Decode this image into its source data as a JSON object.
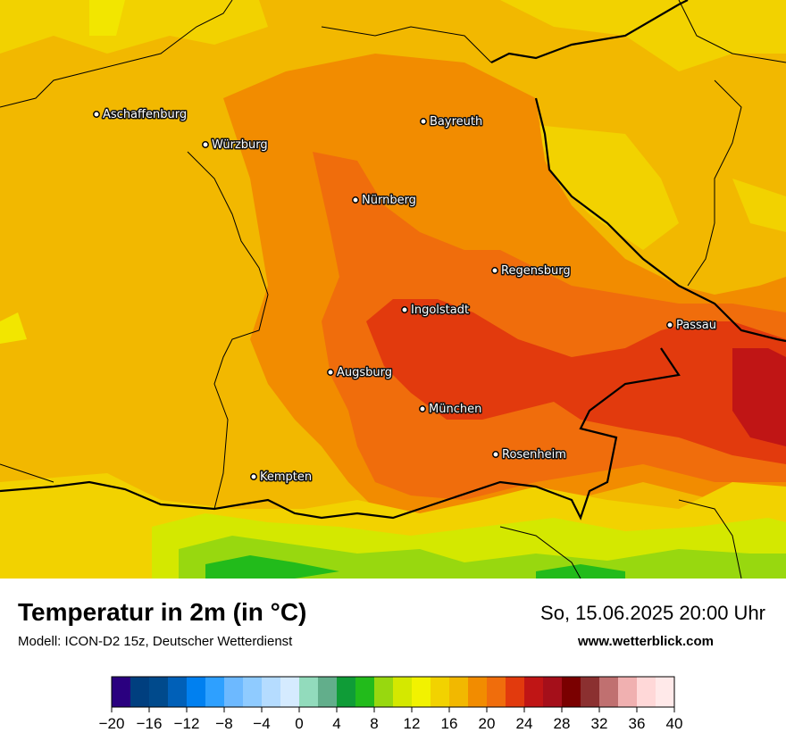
{
  "title": "Temperatur in 2m (in °C)",
  "subtitle": "Modell: ICON-D2 15z, Deutscher Wetterdienst",
  "datetime": "So, 15.06.2025 20:00 Uhr",
  "website": "www.wetterblick.com",
  "cities": [
    {
      "name": "Aschaffenburg"
    },
    {
      "name": "Würzburg"
    },
    {
      "name": "Bayreuth"
    },
    {
      "name": "Nürnberg"
    },
    {
      "name": "Regensburg"
    },
    {
      "name": "Ingolstadt"
    },
    {
      "name": "Passau"
    },
    {
      "name": "Augsburg"
    },
    {
      "name": "München"
    },
    {
      "name": "Rosenheim"
    },
    {
      "name": "Kempten"
    }
  ],
  "legend": {
    "min": -20,
    "max": 40,
    "step": 2,
    "tick_labels": [
      "−20",
      "−16",
      "−12",
      "−8",
      "−4",
      "0",
      "4",
      "8",
      "12",
      "16",
      "20",
      "24",
      "28",
      "32",
      "36",
      "40"
    ],
    "colors": [
      "#2a007f",
      "#003f7f",
      "#004a8c",
      "#0060b8",
      "#0080f0",
      "#2ea0ff",
      "#6db9ff",
      "#8fcbff",
      "#b5dcff",
      "#d5ebff",
      "#92dbbc",
      "#62ae8b",
      "#0f9c37",
      "#22bb1b",
      "#98d80f",
      "#d4e800",
      "#f2f200",
      "#f2d200",
      "#f2b800",
      "#f28c00",
      "#f06d0c",
      "#e23a0d",
      "#c01515",
      "#a50f1a",
      "#7a0000",
      "#8b3030",
      "#c07070",
      "#f0b0b0",
      "#ffd8d8",
      "#ffe9e9"
    ]
  },
  "map": {
    "colors": {
      "t16": "#f2d200",
      "t18": "#f2b800",
      "t20": "#f28c00",
      "t22": "#f06d0c",
      "t24": "#e23a0d",
      "t26": "#c01515",
      "t14": "#d4e800",
      "t12": "#98d80f",
      "t10": "#22bb1b",
      "border": "#000000"
    }
  }
}
